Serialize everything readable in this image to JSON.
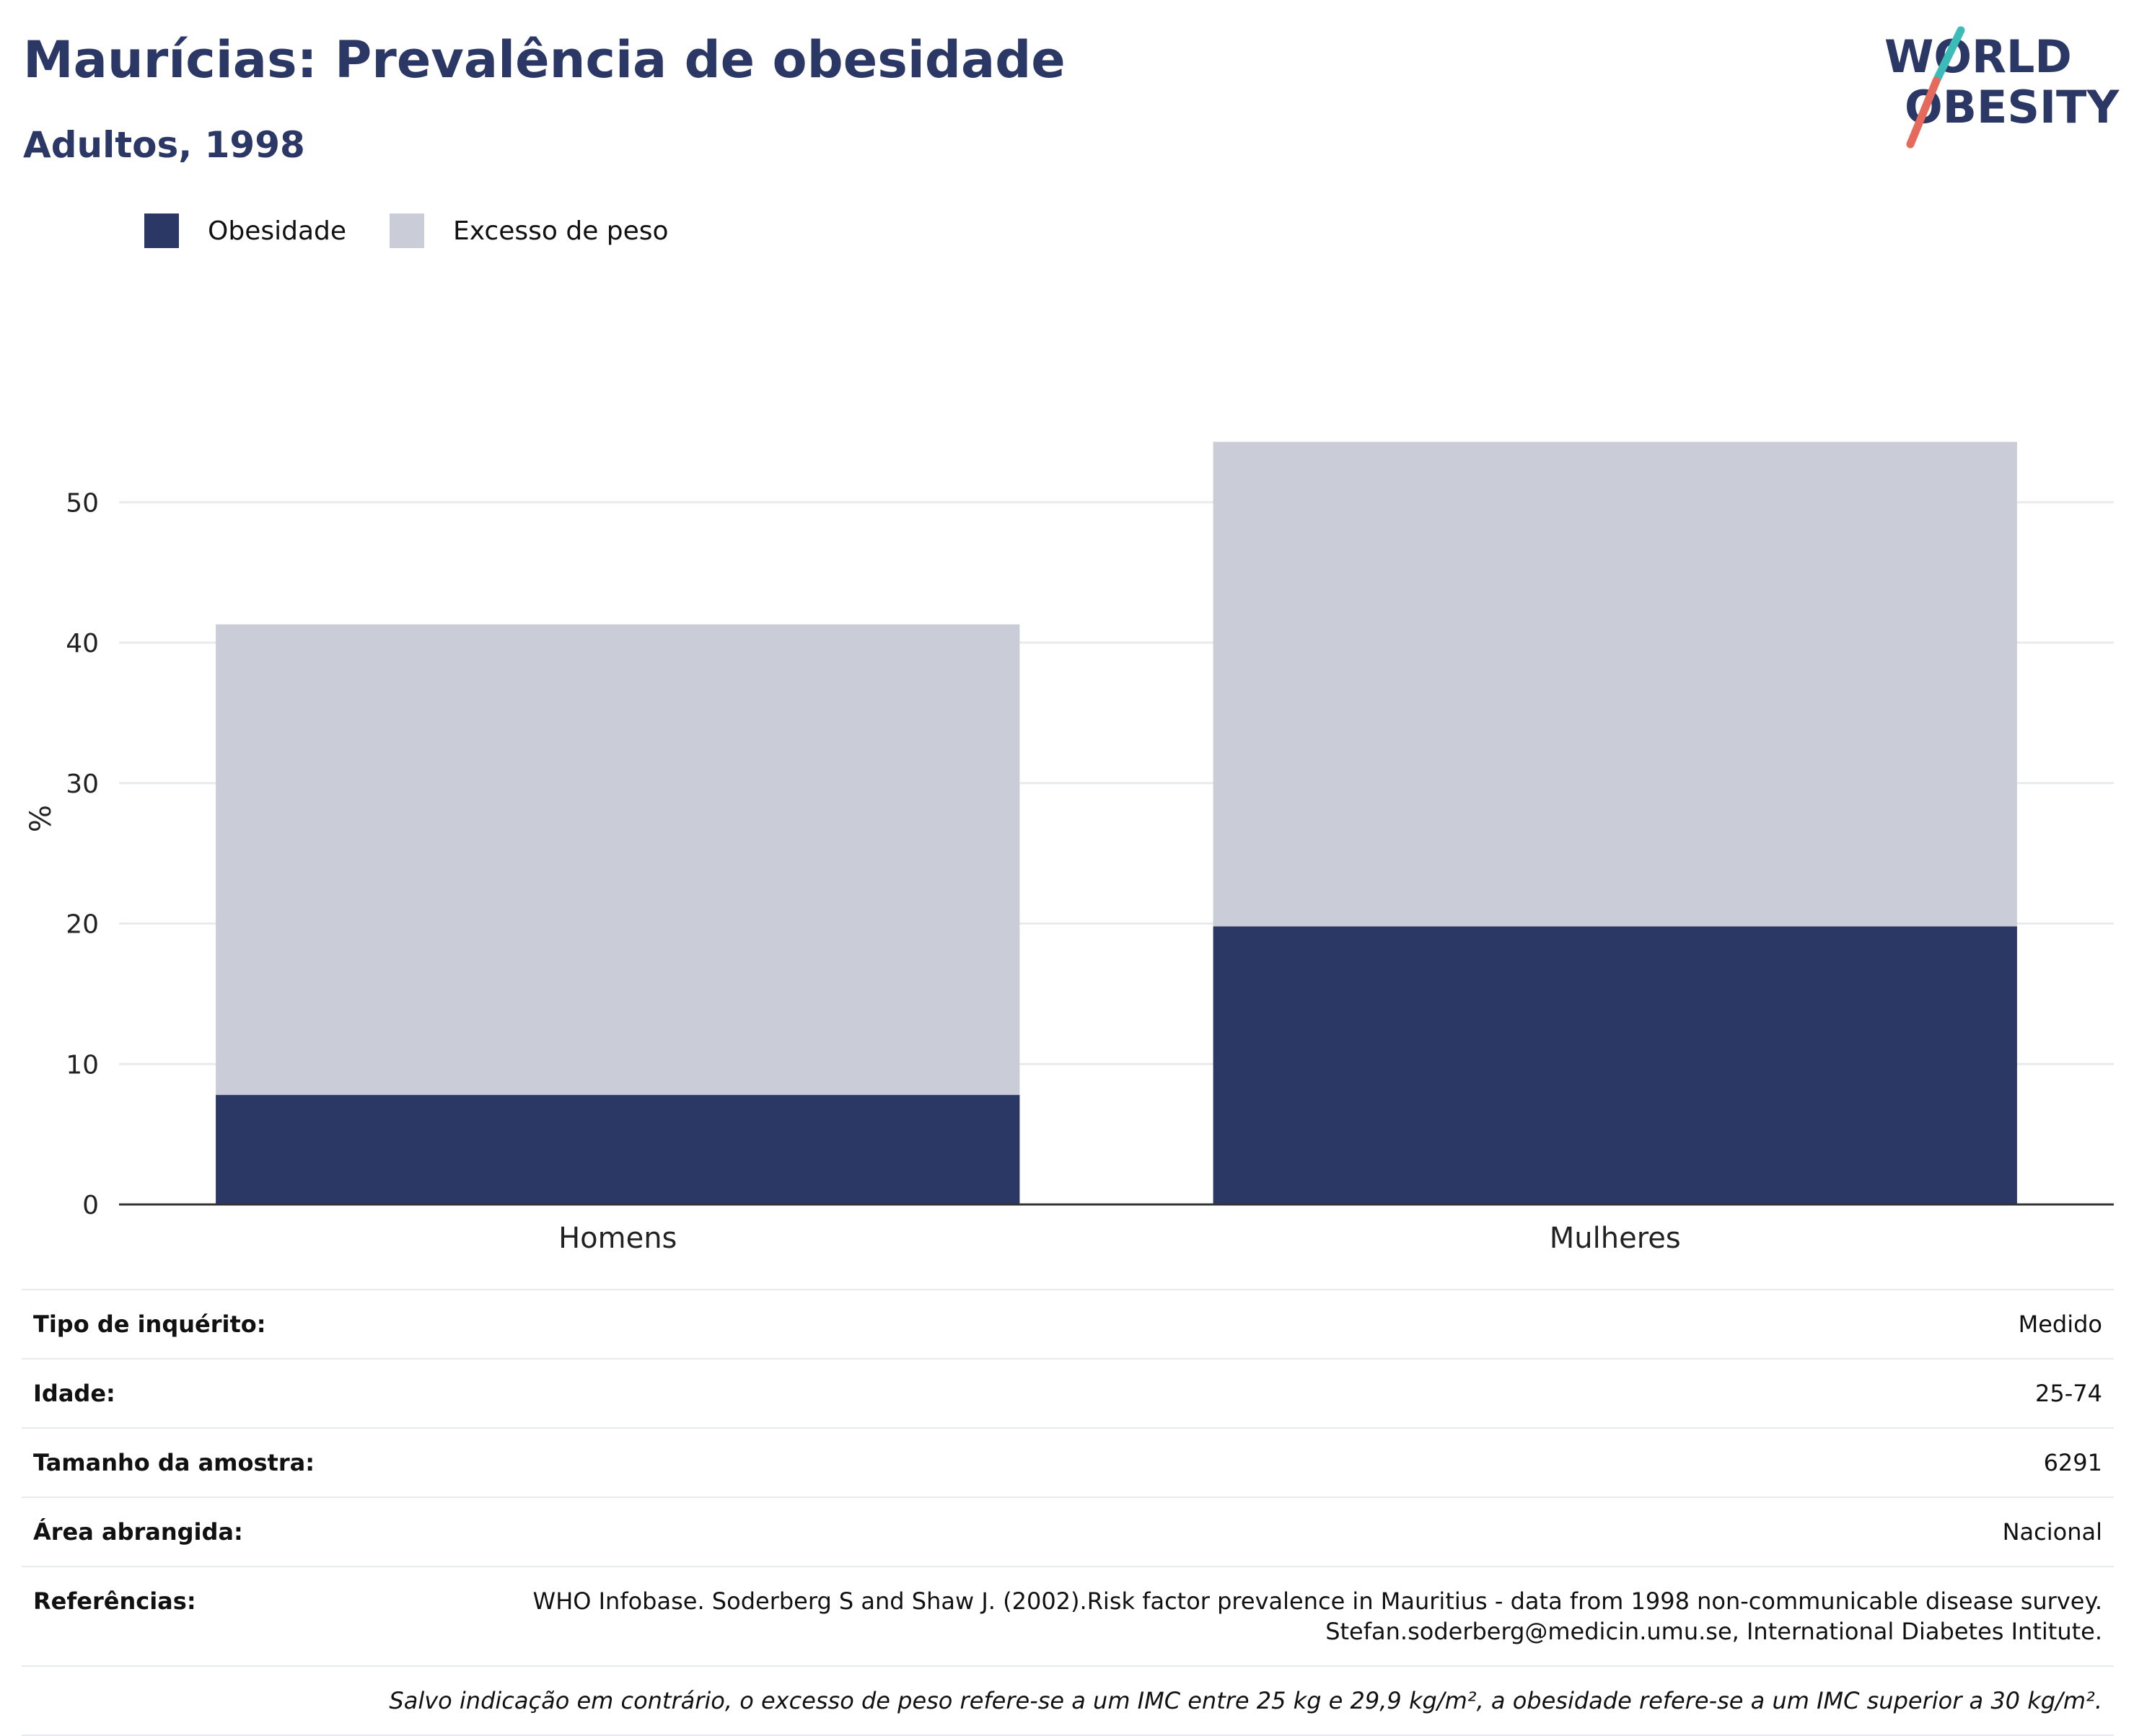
{
  "header": {
    "title": "Maurícias: Prevalência de obesidade",
    "subtitle": "Adultos, 1998"
  },
  "logo": {
    "line1": "WORLD",
    "line2": "OBESITY"
  },
  "colors": {
    "obesity": "#2b3764",
    "overweight": "#cacdd8",
    "title": "#2b3764",
    "grid": "#e8eaee",
    "axis": "#333333"
  },
  "legend": [
    {
      "label": "Obesidade",
      "color": "#2b3764"
    },
    {
      "label": "Excesso de peso",
      "color": "#cacdd8"
    }
  ],
  "chart_data": {
    "type": "bar",
    "stacked": true,
    "categories": [
      "Homens",
      "Mulheres"
    ],
    "series": [
      {
        "name": "Obesidade",
        "values": [
          7.8,
          19.8
        ]
      },
      {
        "name": "Excesso de peso",
        "values": [
          33.5,
          34.5
        ]
      }
    ],
    "ylabel": "%",
    "ylim": [
      0,
      57
    ],
    "yticks": [
      0,
      10,
      20,
      30,
      40,
      50
    ],
    "grid": true,
    "legend_position": "top-left"
  },
  "info": {
    "rows": [
      {
        "label": "Tipo de inquérito:",
        "value": "Medido"
      },
      {
        "label": "Idade:",
        "value": "25-74"
      },
      {
        "label": "Tamanho da amostra:",
        "value": "6291"
      },
      {
        "label": "Área abrangida:",
        "value": "Nacional"
      }
    ],
    "references_label": "Referências:",
    "references_line1": "WHO Infobase. Soderberg S and Shaw J. (2002).Risk factor prevalence in Mauritius - data from 1998 non-communicable disease survey.",
    "references_line2": "Stefan.soderberg@medicin.umu.se, International Diabetes Intitute.",
    "note": "Salvo indicação em contrário, o excesso de peso refere-se a um IMC entre 25 kg e 29,9 kg/m², a obesidade refere-se a um IMC superior a 30 kg/m²."
  }
}
